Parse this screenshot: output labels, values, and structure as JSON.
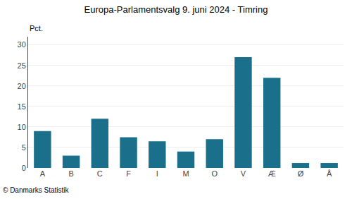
{
  "chart_data": {
    "type": "bar",
    "title": "Europa-Parlamentsvalg 9. juni 2024 - Timring",
    "ylabel": "Pct.",
    "annotations": [
      "© Danmarks Statistik"
    ],
    "categories": [
      "A",
      "B",
      "C",
      "F",
      "I",
      "M",
      "O",
      "V",
      "Æ",
      "Ø",
      "Å"
    ],
    "values": [
      9.0,
      3.0,
      12.0,
      7.5,
      6.5,
      4.0,
      7.0,
      27.0,
      22.0,
      1.2,
      1.2
    ],
    "color": "#1a6f8a",
    "ylim": [
      0,
      32
    ],
    "yticks": [
      0,
      5,
      10,
      15,
      20,
      25,
      30
    ],
    "grid": true
  }
}
